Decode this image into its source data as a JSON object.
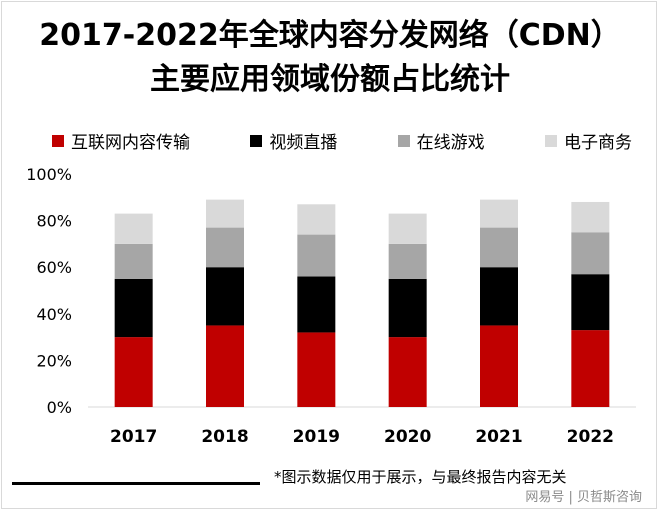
{
  "title_line1": "2017-2022年全球内容分发网络（CDN）",
  "title_line2": "主要应用领域份额占比统计",
  "footnote": "*图示数据仅用于展示，与最终报告内容无关",
  "watermark": "网易号 | 贝哲斯咨询",
  "chart_data": {
    "type": "bar",
    "stacked": true,
    "categories": [
      "2017",
      "2018",
      "2019",
      "2020",
      "2021",
      "2022"
    ],
    "series": [
      {
        "name": "互联网内容传输",
        "color": "#c00000",
        "values": [
          30,
          35,
          32,
          30,
          35,
          33
        ]
      },
      {
        "name": "视频直播",
        "color": "#000000",
        "values": [
          25,
          25,
          24,
          25,
          25,
          24
        ]
      },
      {
        "name": "在线游戏",
        "color": "#a6a6a6",
        "values": [
          15,
          17,
          18,
          15,
          17,
          18
        ]
      },
      {
        "name": "电子商务",
        "color": "#d9d9d9",
        "values": [
          13,
          12,
          13,
          13,
          12,
          13
        ]
      }
    ],
    "ylim": [
      0,
      100
    ],
    "yticks": [
      "0%",
      "20%",
      "40%",
      "60%",
      "80%",
      "100%"
    ],
    "grid": false,
    "legend": "top"
  }
}
